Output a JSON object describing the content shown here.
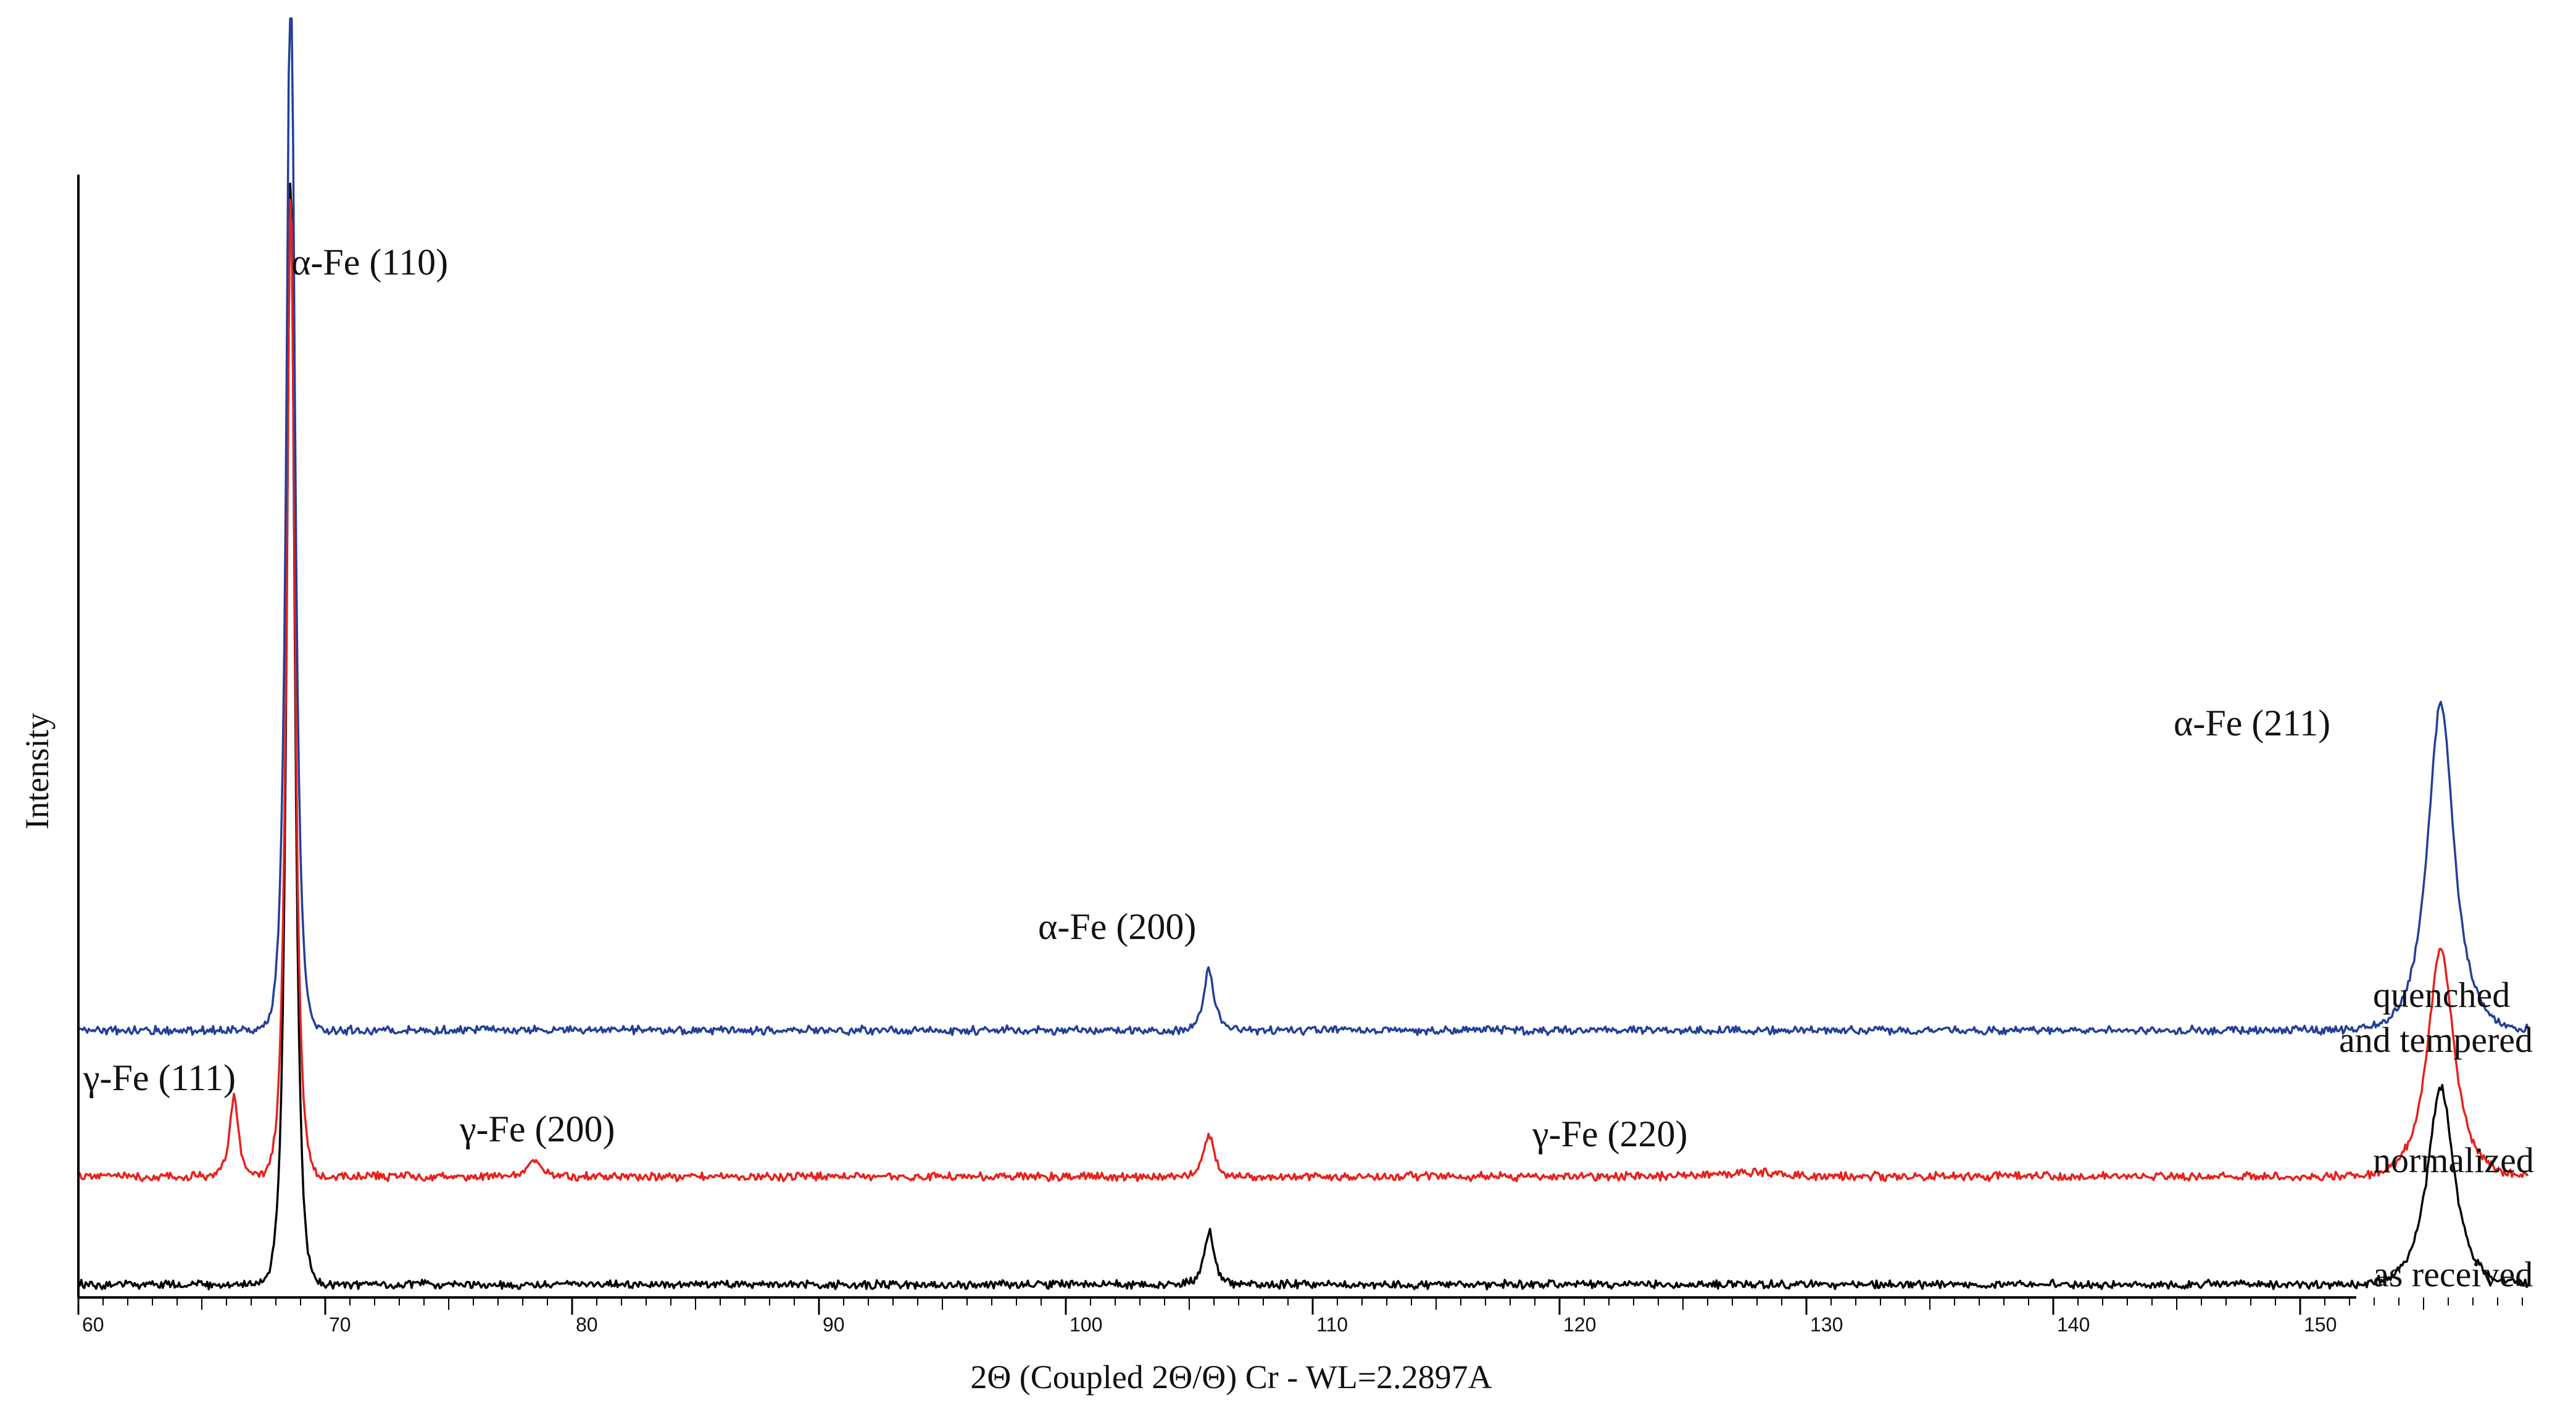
{
  "chart_data": {
    "type": "line",
    "title": "",
    "xlabel": "2Θ (Coupled 2Θ/Θ) Cr - WL=2.2897A",
    "ylabel": "Intensity",
    "xlim": [
      60,
      160
    ],
    "x_ticks": [
      60,
      70,
      80,
      90,
      100,
      110,
      120,
      130,
      140,
      150
    ],
    "x_tick_labels": [
      "60",
      "70",
      "80",
      "90",
      "100",
      "110",
      "120",
      "130",
      "140",
      "150"
    ],
    "grid": false,
    "series": [
      {
        "name": "as received",
        "color": "#000000",
        "peaks": [
          {
            "x": 68.6,
            "height": 1.8,
            "width": 0.28
          },
          {
            "x": 105.8,
            "height": 0.085,
            "width": 0.35
          },
          {
            "x": 155.7,
            "height": 0.32,
            "width": 0.9
          }
        ]
      },
      {
        "name": "normalized",
        "color": "#e8211c",
        "peaks": [
          {
            "x": 66.3,
            "height": 0.13,
            "width": 0.3
          },
          {
            "x": 68.6,
            "height": 1.6,
            "width": 0.28
          },
          {
            "x": 78.5,
            "height": 0.03,
            "width": 0.4
          },
          {
            "x": 105.8,
            "height": 0.07,
            "width": 0.35
          },
          {
            "x": 127.8,
            "height": 0.008,
            "width": 1.5
          },
          {
            "x": 155.7,
            "height": 0.37,
            "width": 0.9
          }
        ]
      },
      {
        "name": "quenched and tempered",
        "color": "#233f9a",
        "peaks": [
          {
            "x": 68.6,
            "height": 1.8,
            "width": 0.28
          },
          {
            "x": 105.8,
            "height": 0.1,
            "width": 0.35
          },
          {
            "x": 155.7,
            "height": 0.53,
            "width": 0.9
          }
        ]
      }
    ],
    "annotations": [
      {
        "text": "α-Fe (110)",
        "x": 68.6
      },
      {
        "text": "α-Fe (200)",
        "x": 105.8
      },
      {
        "text": "α-Fe (211)",
        "x": 155.7
      },
      {
        "text": "γ-Fe (111)",
        "x": 66.3
      },
      {
        "text": "γ-Fe (200)",
        "x": 78.5
      },
      {
        "text": "γ-Fe (220)",
        "x": 127.8
      }
    ],
    "series_labels": {
      "quenched": "quenched",
      "and_tempered": "and tempered",
      "normalized": "normalized",
      "as_received": "as received"
    }
  }
}
